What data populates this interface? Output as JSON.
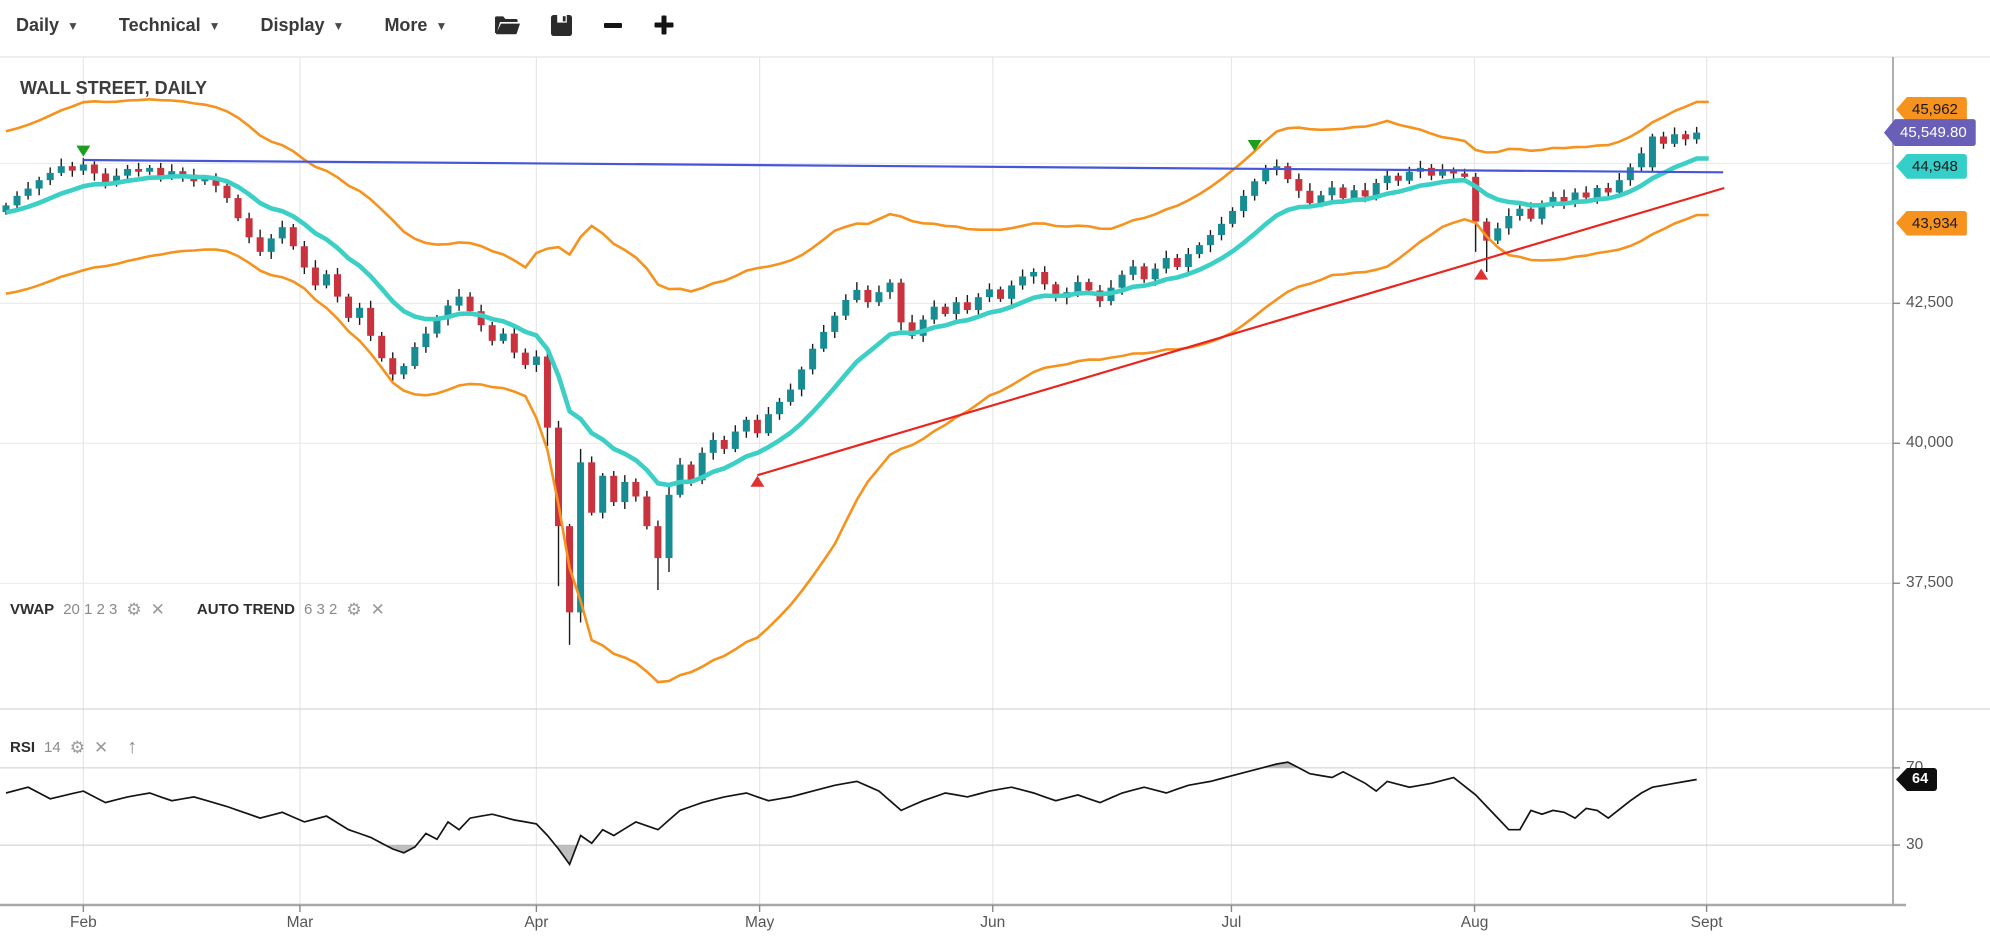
{
  "toolbar": {
    "menus": [
      {
        "label": "Daily"
      },
      {
        "label": "Technical"
      },
      {
        "label": "Display"
      },
      {
        "label": "More"
      }
    ]
  },
  "chart": {
    "title": "WALL STREET, DAILY"
  },
  "indicators": {
    "vwap": {
      "name": "VWAP",
      "params": "20 1 2 3"
    },
    "auto_trend": {
      "name": "AUTO TREND",
      "params": "6 3 2"
    },
    "rsi": {
      "name": "RSI",
      "params": "14"
    }
  },
  "colors": {
    "candle_up": "#178c93",
    "candle_down": "#c9333e",
    "wick": "#1c1c1c",
    "band": "#f6921e",
    "vwap": "#3bcfc6",
    "blue_trend": "#4656d7",
    "red_trend": "#e8251f",
    "rsi_line": "#141414",
    "rsi_shade": "#a9a9a9",
    "grid": "#e8e8e8",
    "rsi_grid": "#cdcdcd",
    "axis": "#9a9a9a",
    "marker_sell": "#1e9e1e",
    "marker_buy": "#e03030"
  },
  "chart_data": {
    "type": "candlestick",
    "title": "WALL STREET, DAILY",
    "timeframe": "Daily",
    "x_axis": {
      "month_ticks": [
        {
          "label": "Feb",
          "day": 7.0
        },
        {
          "label": "Mar",
          "day": 26.6
        },
        {
          "label": "Apr",
          "day": 48.0
        },
        {
          "label": "May",
          "day": 68.2
        },
        {
          "label": "Jun",
          "day": 89.3
        },
        {
          "label": "Jul",
          "day": 110.9
        },
        {
          "label": "Aug",
          "day": 132.9
        },
        {
          "label": "Sept",
          "day": 153.9
        }
      ]
    },
    "y_axis": {
      "visible_range": [
        35290,
        46900
      ],
      "ticks": [
        {
          "value": 45000,
          "label": ""
        },
        {
          "value": 42500,
          "label": "42,500"
        },
        {
          "value": 40000,
          "label": "40,000"
        },
        {
          "value": 37500,
          "label": "37,500"
        }
      ]
    },
    "price_tags": [
      {
        "label": "45,962",
        "value": 45962,
        "bg": "#f6921e",
        "fg": "#1a1a1a",
        "big": false
      },
      {
        "label": "45,549.80",
        "value": 45549.8,
        "bg": "#6a5fb8",
        "fg": "#ffffff",
        "big": true
      },
      {
        "label": "44,948",
        "value": 44948,
        "bg": "#35cfc9",
        "fg": "#1a1a1a",
        "big": false
      },
      {
        "label": "43,934",
        "value": 43934,
        "bg": "#f6921e",
        "fg": "#1a1a1a",
        "big": false
      }
    ],
    "closes": [
      44250,
      44420,
      44550,
      44700,
      44830,
      44950,
      44870,
      44980,
      44820,
      44650,
      44780,
      44900,
      44850,
      44920,
      44780,
      44860,
      44800,
      44680,
      44740,
      44600,
      44380,
      44020,
      43680,
      43420,
      43660,
      43860,
      43520,
      43140,
      42820,
      43020,
      42620,
      42240,
      42420,
      41920,
      41520,
      41230,
      41380,
      41720,
      41960,
      42230,
      42460,
      42620,
      42360,
      42110,
      41830,
      41960,
      41620,
      41400,
      41550,
      40280,
      38520,
      36980,
      39660,
      38760,
      39420,
      38950,
      39310,
      39050,
      38520,
      37950,
      39080,
      39620,
      39340,
      39830,
      40060,
      39900,
      40210,
      40420,
      40180,
      40520,
      40740,
      40960,
      41320,
      41690,
      41990,
      42280,
      42560,
      42740,
      42520,
      42700,
      42870,
      42160,
      41920,
      42210,
      42440,
      42310,
      42520,
      42380,
      42610,
      42750,
      42580,
      42820,
      42980,
      43060,
      42840,
      42600,
      42700,
      42880,
      42730,
      42540,
      42780,
      43010,
      43160,
      42930,
      43120,
      43310,
      43150,
      43380,
      43540,
      43720,
      43920,
      44150,
      44420,
      44680,
      44890,
      44950,
      44720,
      44510,
      44290,
      44430,
      44570,
      44380,
      44520,
      44410,
      44650,
      44780,
      44690,
      44850,
      44920,
      44780,
      44880,
      44820,
      44760,
      43960,
      43620,
      43840,
      44060,
      44190,
      44010,
      44280,
      44400,
      44310,
      44480,
      44390,
      44560,
      44480,
      44700,
      44930,
      45180,
      45480,
      45350,
      45520,
      45430,
      45550
    ],
    "special_candles": {
      "49": [
        41550,
        41620,
        39950,
        40280
      ],
      "50": [
        40280,
        40400,
        37450,
        38520
      ],
      "51": [
        38520,
        38560,
        36400,
        36980
      ],
      "52": [
        36980,
        39900,
        36800,
        39660
      ],
      "59": [
        38520,
        38620,
        37380,
        37950
      ],
      "60": [
        37950,
        39260,
        37700,
        39080
      ],
      "81": [
        42870,
        42940,
        42020,
        42160
      ],
      "133": [
        44760,
        44830,
        43420,
        43960
      ],
      "134": [
        43960,
        44020,
        43060,
        43620
      ],
      "149": [
        44930,
        45530,
        44850,
        45480
      ]
    },
    "indicator_lines": {
      "vwap_current": 44948,
      "band_upper_current": 45962,
      "band_lower_current": 43934,
      "band_dev_waypoints": [
        [
          0,
          1450
        ],
        [
          7,
          1500
        ],
        [
          13,
          1400
        ],
        [
          20,
          1250
        ],
        [
          27,
          1150
        ],
        [
          35,
          1450
        ],
        [
          40,
          1300
        ],
        [
          47,
          1150
        ],
        [
          49,
          1800
        ],
        [
          51,
          2800
        ],
        [
          53,
          3700
        ],
        [
          58,
          3600
        ],
        [
          62,
          3400
        ],
        [
          68,
          3300
        ],
        [
          72,
          3000
        ],
        [
          75,
          2800
        ],
        [
          78,
          2300
        ],
        [
          82,
          2000
        ],
        [
          89,
          1480
        ],
        [
          95,
          1250
        ],
        [
          100,
          1150
        ],
        [
          105,
          1250
        ],
        [
          111,
          1450
        ],
        [
          115,
          1500
        ],
        [
          120,
          1300
        ],
        [
          125,
          1300
        ],
        [
          130,
          800
        ],
        [
          133,
          650
        ],
        [
          136,
          950
        ],
        [
          140,
          1000
        ],
        [
          145,
          950
        ],
        [
          149,
          1000
        ],
        [
          153,
          1010
        ]
      ],
      "blue_trendline": {
        "from_day": 7,
        "from_price": 45060,
        "to_day": 155.4,
        "to_price": 44840
      },
      "red_trendline": {
        "from_day": 68,
        "from_price": 39430,
        "to_day": 155.5,
        "to_price": 44560
      }
    },
    "markers": [
      {
        "type": "sell",
        "day": 7,
        "price": 45120
      },
      {
        "type": "sell",
        "day": 113,
        "price": 45220
      },
      {
        "type": "buy",
        "day": 68,
        "price": 39420
      },
      {
        "type": "buy",
        "day": 133.5,
        "price": 43120
      }
    ],
    "rsi": {
      "period": 14,
      "range": [
        0,
        100
      ],
      "levels": [
        {
          "value": 70,
          "label": "70"
        },
        {
          "value": 30,
          "label": "30"
        }
      ],
      "current": {
        "label": "64",
        "value": 64,
        "bg": "#0e0e0e",
        "fg": "#ffffff"
      },
      "waypoints": [
        [
          0,
          57
        ],
        [
          2,
          60
        ],
        [
          4,
          54
        ],
        [
          7,
          58
        ],
        [
          9,
          52
        ],
        [
          11,
          55
        ],
        [
          13,
          57
        ],
        [
          15,
          53
        ],
        [
          17,
          55
        ],
        [
          20,
          50
        ],
        [
          23,
          44
        ],
        [
          25,
          47
        ],
        [
          27,
          42
        ],
        [
          29,
          45
        ],
        [
          31,
          38
        ],
        [
          33,
          34
        ],
        [
          35,
          28
        ],
        [
          36,
          26
        ],
        [
          37,
          29
        ],
        [
          38,
          36
        ],
        [
          39,
          33
        ],
        [
          40,
          42
        ],
        [
          41,
          38
        ],
        [
          42,
          44
        ],
        [
          44,
          46
        ],
        [
          46,
          43
        ],
        [
          48,
          41
        ],
        [
          49,
          35
        ],
        [
          50,
          28
        ],
        [
          51,
          20
        ],
        [
          52,
          35
        ],
        [
          53,
          31
        ],
        [
          54,
          38
        ],
        [
          55,
          35
        ],
        [
          57,
          42
        ],
        [
          59,
          38
        ],
        [
          61,
          48
        ],
        [
          63,
          52
        ],
        [
          65,
          55
        ],
        [
          67,
          57
        ],
        [
          69,
          53
        ],
        [
          71,
          55
        ],
        [
          73,
          58
        ],
        [
          75,
          61
        ],
        [
          77,
          63
        ],
        [
          79,
          58
        ],
        [
          81,
          48
        ],
        [
          83,
          53
        ],
        [
          85,
          57
        ],
        [
          87,
          55
        ],
        [
          89,
          58
        ],
        [
          91,
          60
        ],
        [
          93,
          57
        ],
        [
          95,
          53
        ],
        [
          97,
          56
        ],
        [
          99,
          52
        ],
        [
          101,
          57
        ],
        [
          103,
          60
        ],
        [
          105,
          57
        ],
        [
          107,
          61
        ],
        [
          109,
          63
        ],
        [
          111,
          66
        ],
        [
          113,
          69
        ],
        [
          115,
          72
        ],
        [
          116,
          73
        ],
        [
          117,
          70
        ],
        [
          118,
          67
        ],
        [
          120,
          65
        ],
        [
          121,
          68
        ],
        [
          123,
          62
        ],
        [
          124,
          58
        ],
        [
          125,
          63
        ],
        [
          127,
          60
        ],
        [
          129,
          62
        ],
        [
          131,
          65
        ],
        [
          133,
          56
        ],
        [
          134,
          50
        ],
        [
          135,
          44
        ],
        [
          136,
          38
        ],
        [
          137,
          38
        ],
        [
          138,
          48
        ],
        [
          139,
          46
        ],
        [
          140,
          48
        ],
        [
          141,
          47
        ],
        [
          142,
          44
        ],
        [
          143,
          49
        ],
        [
          144,
          48
        ],
        [
          145,
          44
        ],
        [
          147,
          53
        ],
        [
          148,
          57
        ],
        [
          149,
          60
        ],
        [
          151,
          62
        ],
        [
          152,
          63
        ],
        [
          153,
          64
        ]
      ]
    }
  }
}
